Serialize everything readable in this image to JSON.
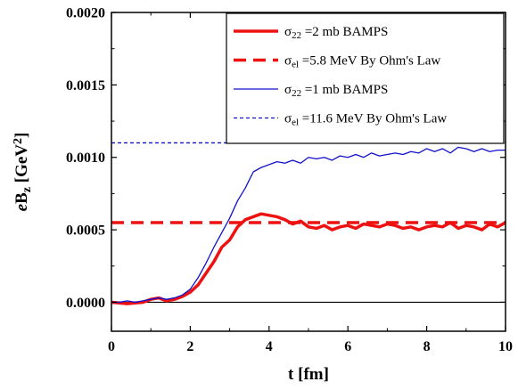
{
  "chart_data": {
    "type": "line",
    "xlabel": "t [fm]",
    "ylabel": "eB_z [GeV^2]",
    "xlim": [
      0,
      10
    ],
    "ylim": [
      -0.0002,
      0.002
    ],
    "x_ticks": [
      "0",
      "2",
      "4",
      "6",
      "8",
      "10"
    ],
    "y_ticks": [
      "0.0000",
      "0.0005",
      "0.0010",
      "0.0015",
      "0.0020"
    ],
    "grid": false,
    "legend_position": "top-right",
    "zero_line": 0,
    "series": [
      {
        "name": "σ22 =2 mb BAMPS",
        "legend": {
          "sym": "σ",
          "sub": "22",
          "rest": " =2 mb BAMPS"
        },
        "style": "solid-thick",
        "color": "#ee1111",
        "x": [
          0,
          0.2,
          0.4,
          0.6,
          0.8,
          1.0,
          1.2,
          1.4,
          1.6,
          1.8,
          2.0,
          2.2,
          2.4,
          2.6,
          2.8,
          3.0,
          3.2,
          3.4,
          3.6,
          3.8,
          4.0,
          4.2,
          4.4,
          4.6,
          4.8,
          5.0,
          5.2,
          5.4,
          5.6,
          5.8,
          6.0,
          6.2,
          6.4,
          6.6,
          6.8,
          7.0,
          7.2,
          7.4,
          7.6,
          7.8,
          8.0,
          8.2,
          8.4,
          8.6,
          8.8,
          9.0,
          9.2,
          9.4,
          9.6,
          9.8,
          10.0
        ],
        "y": [
          0.0,
          -5e-06,
          -1e-05,
          -5e-06,
          0.0,
          2e-05,
          3e-05,
          1e-05,
          2e-05,
          4e-05,
          7e-05,
          0.00012,
          0.0002,
          0.00028,
          0.00038,
          0.00043,
          0.00052,
          0.00057,
          0.00059,
          0.00061,
          0.0006,
          0.00059,
          0.00057,
          0.00054,
          0.00056,
          0.00052,
          0.00051,
          0.00053,
          0.0005,
          0.00052,
          0.00053,
          0.00051,
          0.00054,
          0.00053,
          0.00052,
          0.00054,
          0.00053,
          0.00051,
          0.00052,
          0.0005,
          0.00052,
          0.00053,
          0.00052,
          0.00055,
          0.00051,
          0.00053,
          0.00052,
          0.0005,
          0.00054,
          0.00052,
          0.00055
        ]
      },
      {
        "name": "σel =5.8 MeV By Ohm's Law",
        "legend": {
          "sym": "σ",
          "sub": "el",
          "rest": " =5.8 MeV By Ohm's Law"
        },
        "style": "dashed-thick",
        "color": "#ee1111",
        "x": [
          0,
          10
        ],
        "y": [
          0.00055,
          0.00055
        ]
      },
      {
        "name": "σ22 =1 mb BAMPS",
        "legend": {
          "sym": "σ",
          "sub": "22",
          "rest": " =1 mb BAMPS"
        },
        "style": "solid-thin",
        "color": "#1111cc",
        "x": [
          0,
          0.2,
          0.4,
          0.6,
          0.8,
          1.0,
          1.2,
          1.4,
          1.6,
          1.8,
          2.0,
          2.2,
          2.4,
          2.6,
          2.8,
          3.0,
          3.2,
          3.4,
          3.6,
          3.8,
          4.0,
          4.2,
          4.4,
          4.6,
          4.8,
          5.0,
          5.2,
          5.4,
          5.6,
          5.8,
          6.0,
          6.2,
          6.4,
          6.6,
          6.8,
          7.0,
          7.2,
          7.4,
          7.6,
          7.8,
          8.0,
          8.2,
          8.4,
          8.6,
          8.8,
          9.0,
          9.2,
          9.4,
          9.6,
          9.8,
          10.0
        ],
        "y": [
          0.0,
          0.0,
          1e-05,
          0.0,
          1e-05,
          2e-05,
          3e-05,
          2e-05,
          3e-05,
          5e-05,
          9e-05,
          0.00017,
          0.00027,
          0.00038,
          0.00048,
          0.00058,
          0.0007,
          0.00079,
          0.0009,
          0.00093,
          0.00095,
          0.00097,
          0.00096,
          0.00098,
          0.00096,
          0.001,
          0.00099,
          0.001,
          0.00098,
          0.00101,
          0.001,
          0.00102,
          0.001,
          0.00103,
          0.00101,
          0.00102,
          0.00103,
          0.00102,
          0.00104,
          0.00103,
          0.00106,
          0.00104,
          0.00106,
          0.00103,
          0.00107,
          0.00106,
          0.00104,
          0.00106,
          0.00104,
          0.00105,
          0.00105
        ]
      },
      {
        "name": "σel =11.6 MeV By Ohm's Law",
        "legend": {
          "sym": "σ",
          "sub": "el",
          "rest": " =11.6 MeV By Ohm's Law"
        },
        "style": "dashed-thin",
        "color": "#1111cc",
        "x": [
          0,
          10
        ],
        "y": [
          0.0011,
          0.0011
        ]
      }
    ]
  }
}
